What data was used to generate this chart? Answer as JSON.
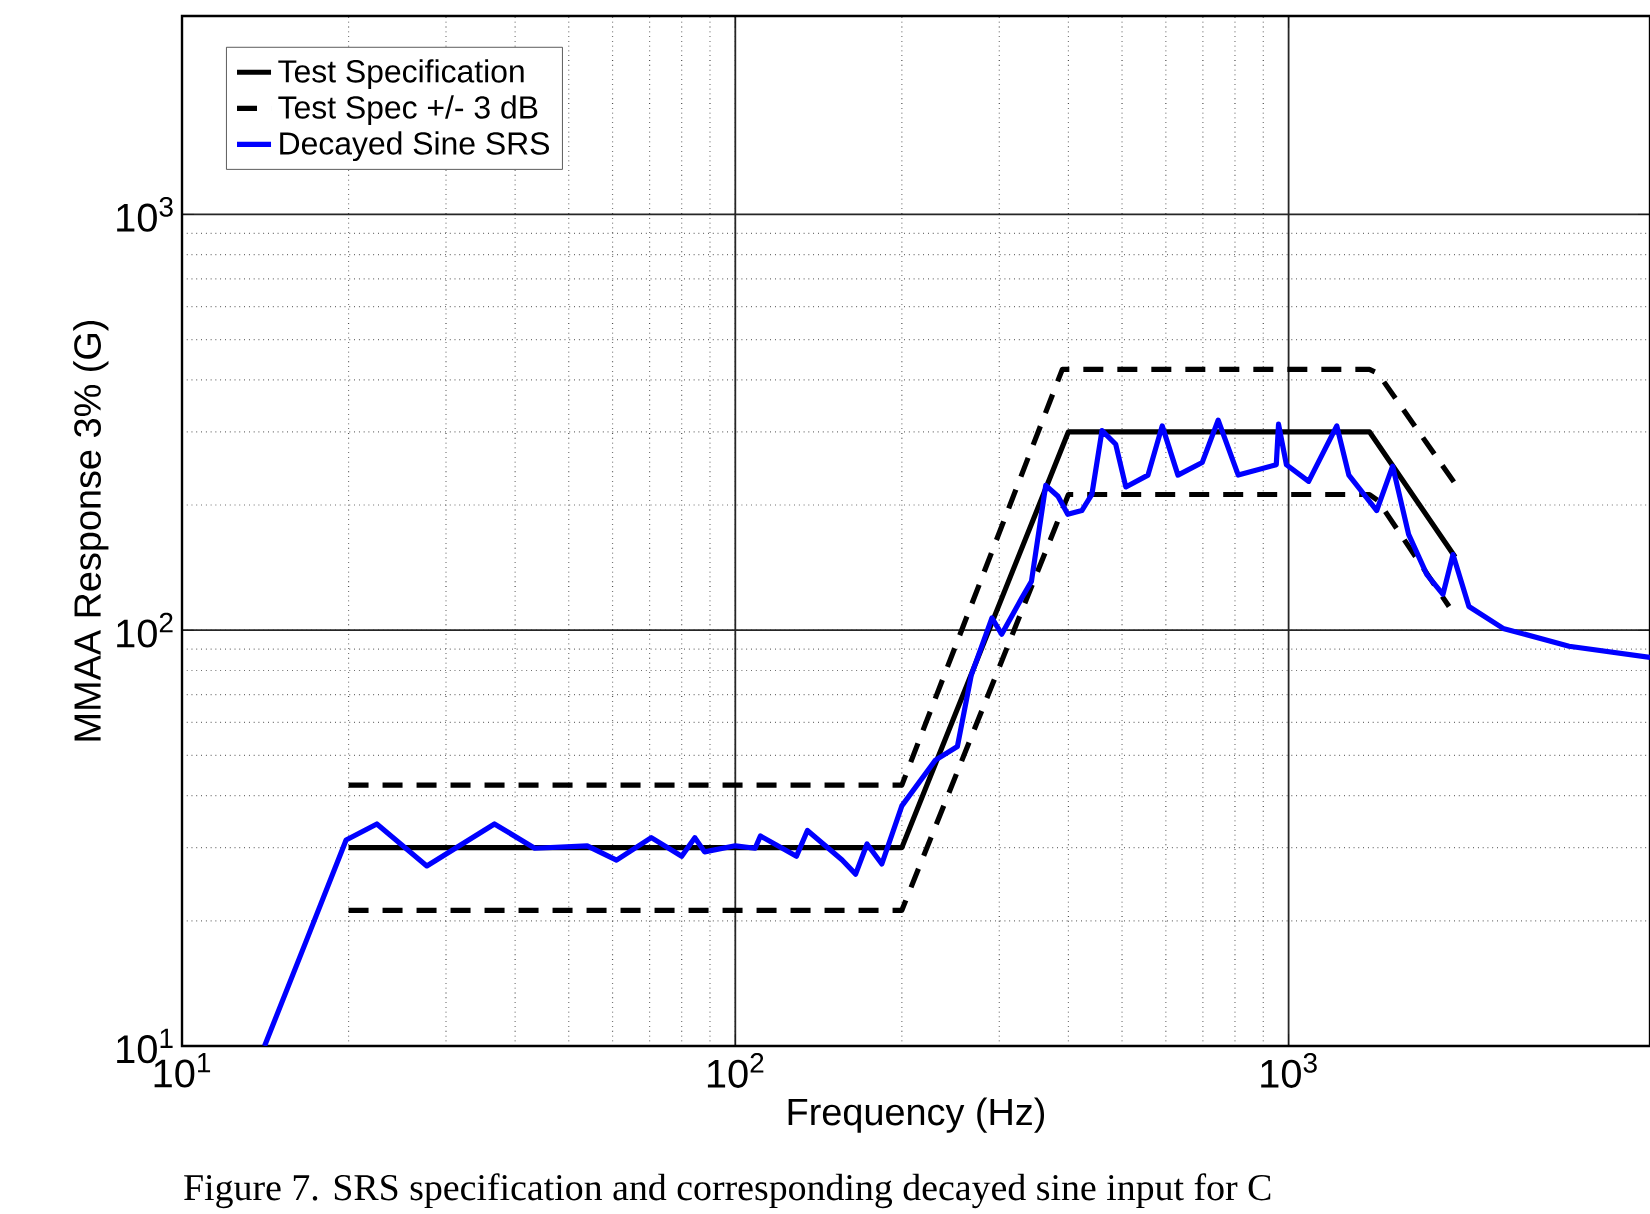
{
  "chart_data": {
    "type": "line",
    "xlabel": "Frequency (Hz)",
    "ylabel": "MMAA Response 3% (G)",
    "log": "xy",
    "grid": true,
    "legend": "top left",
    "xlim": [
      10,
      4500
    ],
    "ylim": [
      10,
      3000
    ],
    "xticks": [
      {
        "value": 10,
        "label": "10$^{1}$"
      },
      {
        "value": 100,
        "label": "10$^{2}$"
      },
      {
        "value": 1000,
        "label": "10$^{3}$"
      }
    ],
    "yticks": [
      {
        "value": 10,
        "label": "10$^{1}$"
      },
      {
        "value": 100,
        "label": "10$^{2}$"
      },
      {
        "value": 1000,
        "label": "10$^{3}$"
      }
    ],
    "series": [
      {
        "name": "Test Specification",
        "color": "#000000",
        "line_style": "solid",
        "x": [
          20,
          200,
          400,
          1400,
          2000
        ],
        "values": [
          30,
          30,
          300,
          300,
          150
        ]
      },
      {
        "name": "Test Spec +/- 3 dB",
        "color": "#000000",
        "line_style": "dashed",
        "x": [
          20,
          200,
          390,
          1400,
          1450,
          2000
        ],
        "values": [
          42.4,
          42.4,
          424,
          424,
          415,
          225
        ]
      },
      {
        "color": "#000000",
        "line_style": "dashed",
        "x": [
          20,
          200,
          400,
          1400,
          1450,
          1950
        ],
        "values": [
          21.2,
          21.2,
          212,
          212,
          205,
          114
        ]
      },
      {
        "name": "Decayed Sine SRS",
        "color": "#0000ff",
        "line_style": "solid",
        "x": [
          14.1,
          16.8,
          19.8,
          22.5,
          27.7,
          36.7,
          43.4,
          54,
          61,
          70.5,
          80,
          84.5,
          88,
          100,
          108.6,
          111,
          129,
          135,
          156,
          165,
          173,
          184,
          200,
          230,
          252,
          267,
          291,
          303,
          330,
          343,
          364,
          383,
          399,
          423,
          441,
          460,
          487,
          508,
          557,
          591,
          631,
          698,
          746,
          811,
          950,
          959,
          991,
          1087,
          1222,
          1285,
          1443,
          1542,
          1648,
          1778,
          1901,
          1982,
          2118,
          2442,
          3213,
          4500
        ],
        "values": [
          10,
          18,
          31.3,
          34.2,
          27.1,
          34.2,
          29.9,
          30.3,
          28,
          31.7,
          28.6,
          31.7,
          29.3,
          30.3,
          29.9,
          32,
          28.6,
          33,
          28,
          25.9,
          30.6,
          27.4,
          37.8,
          48.7,
          52.5,
          78,
          107,
          97.8,
          120,
          131,
          223,
          210,
          190,
          194,
          212,
          302,
          280,
          221,
          236,
          310,
          236,
          253,
          320,
          236,
          250,
          313,
          250,
          228,
          310,
          236,
          194,
          248,
          170,
          136,
          122,
          152,
          114,
          101,
          91.5,
          86
        ]
      }
    ],
    "annotations": [
      "Figure 7. SRS specification and corresponding decayed sine input for C"
    ]
  }
}
